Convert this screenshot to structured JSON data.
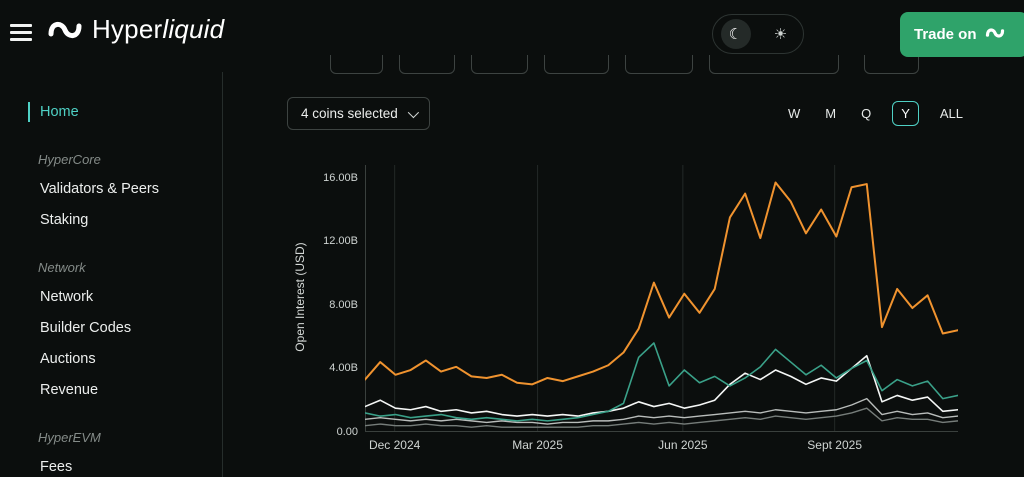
{
  "header": {
    "brand": {
      "name_regular": "Hyper",
      "name_italic": "liquid"
    },
    "trade_button_label": "Trade on",
    "theme": {
      "moon_icon": "☾",
      "sun_icon": "☀"
    }
  },
  "sidebar": {
    "home_label": "Home",
    "sections": [
      {
        "label": "HyperCore",
        "items": [
          "Validators & Peers",
          "Staking"
        ]
      },
      {
        "label": "Network",
        "items": [
          "Network",
          "Builder Codes",
          "Auctions",
          "Revenue"
        ]
      },
      {
        "label": "HyperEVM",
        "items": [
          "Fees"
        ]
      }
    ]
  },
  "controls": {
    "coin_selector_label": "4 coins selected",
    "timeframes": [
      "W",
      "M",
      "Q",
      "Y",
      "ALL"
    ],
    "timeframe_selected": "Y"
  },
  "colors": {
    "accent_teal": "#4fd1c5",
    "trade_button_green": "#2fa36a",
    "background": "#0b0e0d"
  },
  "chart_data": {
    "type": "line",
    "title": "",
    "xlabel": "",
    "ylabel": "Open Interest (USD)",
    "ylim": [
      0,
      16.8
    ],
    "grid": "vertical-only",
    "legend": "none",
    "y_ticks": [
      {
        "label": "0.00",
        "value": 0
      },
      {
        "label": "4.00B",
        "value": 4
      },
      {
        "label": "8.00B",
        "value": 8
      },
      {
        "label": "12.00B",
        "value": 12
      },
      {
        "label": "16.00B",
        "value": 16
      }
    ],
    "x_ticks": [
      {
        "label": "Dec 2024",
        "pos": 0.05
      },
      {
        "label": "Mar 2025",
        "pos": 0.291
      },
      {
        "label": "Jun 2025",
        "pos": 0.536
      },
      {
        "label": "Sept 2025",
        "pos": 0.792
      }
    ],
    "series": [
      {
        "name": "dark-gray-series",
        "color": "#767d7a",
        "width": 1.4,
        "values": [
          0.4,
          0.5,
          0.4,
          0.4,
          0.5,
          0.4,
          0.4,
          0.3,
          0.4,
          0.3,
          0.3,
          0.3,
          0.3,
          0.3,
          0.3,
          0.4,
          0.4,
          0.5,
          0.6,
          0.5,
          0.6,
          0.5,
          0.6,
          0.7,
          0.8,
          0.9,
          0.8,
          1.0,
          0.9,
          0.8,
          0.9,
          1.0,
          1.2,
          1.5,
          0.7,
          0.9,
          0.8,
          0.8,
          0.6,
          0.7
        ]
      },
      {
        "name": "light-gray-series",
        "color": "#b9bdbb",
        "width": 1.4,
        "values": [
          0.8,
          0.9,
          0.8,
          0.7,
          0.8,
          0.7,
          0.8,
          0.7,
          0.6,
          0.7,
          0.6,
          0.6,
          0.5,
          0.6,
          0.6,
          0.7,
          0.7,
          0.8,
          1.0,
          0.9,
          1.0,
          0.9,
          1.0,
          1.1,
          1.2,
          1.3,
          1.2,
          1.4,
          1.3,
          1.2,
          1.3,
          1.4,
          1.7,
          2.1,
          1.1,
          1.3,
          1.1,
          1.2,
          0.9,
          1.0
        ]
      },
      {
        "name": "white-series",
        "color": "#f5f7f6",
        "width": 1.6,
        "values": [
          1.6,
          2.0,
          1.5,
          1.4,
          1.6,
          1.3,
          1.4,
          1.2,
          1.3,
          1.1,
          1.0,
          1.1,
          1.0,
          1.1,
          1.0,
          1.2,
          1.3,
          1.5,
          1.9,
          1.6,
          1.8,
          1.5,
          1.7,
          2.0,
          3.0,
          3.7,
          3.3,
          3.9,
          3.5,
          3.0,
          3.4,
          3.2,
          4.0,
          4.8,
          1.9,
          2.3,
          2.0,
          2.2,
          1.3,
          1.4
        ]
      },
      {
        "name": "teal-series",
        "color": "#3aa189",
        "width": 1.6,
        "values": [
          1.2,
          1.0,
          1.1,
          0.9,
          1.0,
          1.1,
          0.9,
          0.8,
          0.9,
          0.8,
          0.7,
          0.8,
          0.7,
          0.8,
          0.9,
          1.1,
          1.3,
          1.8,
          4.7,
          5.6,
          2.9,
          3.9,
          3.1,
          3.5,
          2.9,
          3.4,
          4.1,
          5.2,
          4.4,
          3.6,
          4.2,
          3.4,
          4.0,
          4.5,
          2.6,
          3.3,
          2.9,
          3.2,
          2.1,
          2.3
        ]
      },
      {
        "name": "orange-series",
        "color": "#f0932f",
        "width": 2,
        "values": [
          3.3,
          4.4,
          3.6,
          3.9,
          4.5,
          3.8,
          4.1,
          3.5,
          3.4,
          3.6,
          3.1,
          3.0,
          3.4,
          3.2,
          3.5,
          3.8,
          4.2,
          5.0,
          6.5,
          9.4,
          7.2,
          8.7,
          7.5,
          9.0,
          13.5,
          15.0,
          12.2,
          15.7,
          14.5,
          12.5,
          14.0,
          12.3,
          15.4,
          15.6,
          6.6,
          9.0,
          7.8,
          8.6,
          6.2,
          6.4
        ]
      }
    ]
  }
}
